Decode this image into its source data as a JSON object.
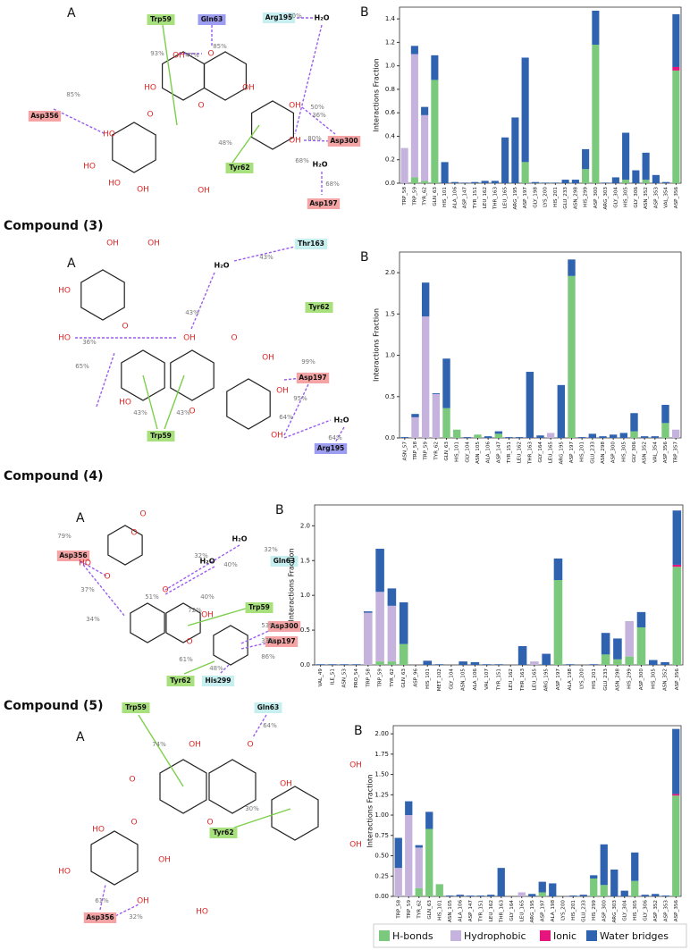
{
  "chart_data": [
    {
      "type": "bar",
      "stacked": true,
      "panel": "B",
      "y_label": "Interactions Fraction",
      "categories": [
        "TRP_58",
        "TRP_59",
        "TYR_62",
        "GLN_63",
        "HIS_101",
        "ALA_106",
        "ASP_147",
        "TYR_151",
        "LEU_162",
        "THR_163",
        "LEU_165",
        "ARG_195",
        "ASP_197",
        "GLY_198",
        "LYS_200",
        "HIS_201",
        "GLU_233",
        "ASN_298",
        "HIS_299",
        "ASP_300",
        "ARG_303",
        "GLY_304",
        "HIS_305",
        "GLY_306",
        "ASN_352",
        "ASP_353",
        "VAL_354",
        "ASP_356"
      ],
      "series": [
        {
          "name": "H-bonds",
          "color": "#7ac97c",
          "values": [
            0,
            0.05,
            0.02,
            0.88,
            0,
            0,
            0,
            0,
            0,
            0,
            0,
            0,
            0.18,
            0,
            0,
            0,
            0,
            0,
            0.12,
            1.18,
            0,
            0,
            0.03,
            0,
            0.03,
            0,
            0,
            0.96
          ]
        },
        {
          "name": "Hydrophobic",
          "color": "#c5b3dd",
          "values": [
            0.3,
            1.05,
            0.56,
            0,
            0,
            0,
            0,
            0,
            0,
            0,
            0,
            0,
            0,
            0,
            0,
            0,
            0,
            0,
            0,
            0,
            0,
            0,
            0,
            0,
            0,
            0,
            0,
            0
          ]
        },
        {
          "name": "Ionic",
          "color": "#e5157d",
          "values": [
            0,
            0,
            0,
            0,
            0,
            0,
            0,
            0,
            0,
            0,
            0,
            0,
            0,
            0,
            0,
            0,
            0,
            0,
            0,
            0,
            0,
            0,
            0,
            0,
            0,
            0,
            0,
            0.03
          ]
        },
        {
          "name": "Water bridges",
          "color": "#2f63b0",
          "values": [
            0,
            0.07,
            0.07,
            0.21,
            0.18,
            0.01,
            0.005,
            0.01,
            0.02,
            0.02,
            0.39,
            0.56,
            0.89,
            0.01,
            0.005,
            0.005,
            0.03,
            0.03,
            0.17,
            0.29,
            0.005,
            0.05,
            0.4,
            0.11,
            0.23,
            0.07,
            0.01,
            0.45
          ]
        }
      ],
      "ylim": [
        0,
        1.5
      ],
      "yticks": [
        {
          "value": 0,
          "label": "0.0"
        },
        0.2,
        0.4,
        0.6,
        0.8,
        {
          "value": 1,
          "label": "1.0"
        },
        1.2,
        1.4
      ]
    },
    {
      "type": "bar",
      "stacked": true,
      "panel": "B",
      "y_label": "Interactions Fraction",
      "categories": [
        "ASN_57",
        "TRP_58",
        "TRP_59",
        "TYR_62",
        "GLN_63",
        "HIS_101",
        "GLY_104",
        "ASN_105",
        "ALA_106",
        "ASP_147",
        "TYR_151",
        "LEU_162",
        "THR_163",
        "GLY_164",
        "LEU_165",
        "ARG_195",
        "ASP_197",
        "HIS_201",
        "GLU_233",
        "ASN_298",
        "ASP_300",
        "HIS_305",
        "GLY_306",
        "ASN_352",
        "VAL_354",
        "ASP_356",
        "TRP_357"
      ],
      "series": [
        {
          "name": "H-bonds",
          "color": "#7ac97c",
          "values": [
            0,
            0,
            0,
            0,
            0.36,
            0.1,
            0,
            0.04,
            0,
            0.05,
            0,
            0,
            0,
            0,
            0,
            0,
            1.96,
            0,
            0,
            0,
            0,
            0,
            0.08,
            0,
            0,
            0.18,
            0
          ]
        },
        {
          "name": "Hydrophobic",
          "color": "#c5b3dd",
          "values": [
            0,
            0.25,
            1.47,
            0.53,
            0,
            0,
            0,
            0,
            0,
            0,
            0,
            0,
            0,
            0,
            0.06,
            0,
            0,
            0,
            0,
            0,
            0,
            0,
            0,
            0,
            0,
            0,
            0.1
          ]
        },
        {
          "name": "Ionic",
          "color": "#e5157d",
          "values": [
            0,
            0,
            0,
            0,
            0,
            0,
            0,
            0,
            0,
            0,
            0,
            0,
            0,
            0,
            0,
            0,
            0,
            0,
            0,
            0,
            0,
            0,
            0,
            0,
            0,
            0,
            0
          ]
        },
        {
          "name": "Water bridges",
          "color": "#2f63b0",
          "values": [
            0.01,
            0.04,
            0.41,
            0.01,
            0.6,
            0,
            0.01,
            0,
            0.02,
            0.03,
            0.01,
            0.01,
            0.8,
            0.03,
            0,
            0.64,
            0.2,
            0.01,
            0.05,
            0.02,
            0.04,
            0.06,
            0.22,
            0.02,
            0.02,
            0.22,
            0
          ]
        }
      ],
      "ylim": [
        0,
        2.25
      ],
      "yticks": [
        {
          "value": 0,
          "label": "0.0"
        },
        0.5,
        {
          "value": 1,
          "label": "1.0"
        },
        1.5,
        {
          "value": 2,
          "label": "2.0"
        }
      ]
    },
    {
      "type": "bar",
      "stacked": true,
      "panel": "B",
      "y_label": "Interactions Fraction",
      "categories": [
        "VAL_49",
        "ILE_51",
        "ASN_53",
        "PRO_54",
        "TRP_58",
        "TRP_59",
        "TYR_62",
        "GLN_63",
        "ASP_96",
        "HIS_101",
        "MET_102",
        "GLY_104",
        "ASN_105",
        "ALA_106",
        "VAL_107",
        "TYR_151",
        "LEU_162",
        "THR_163",
        "LEU_165",
        "ARG_195",
        "ASP_197",
        "ALA_198",
        "LYS_200",
        "HIS_201",
        "GLU_233",
        "ASN_298",
        "HIS_299",
        "ASP_300",
        "HIS_305",
        "ASN_352",
        "ASP_356"
      ],
      "series": [
        {
          "name": "H-bonds",
          "color": "#7ac97c",
          "values": [
            0,
            0,
            0,
            0,
            0,
            0.05,
            0.05,
            0.3,
            0,
            0,
            0,
            0,
            0,
            0,
            0,
            0,
            0,
            0,
            0,
            0,
            1.22,
            0,
            0,
            0,
            0.15,
            0.08,
            0.12,
            0.54,
            0,
            0,
            1.41
          ]
        },
        {
          "name": "Hydrophobic",
          "color": "#c5b3dd",
          "values": [
            0,
            0,
            0,
            0,
            0.75,
            1.0,
            0.8,
            0,
            0,
            0,
            0,
            0,
            0,
            0,
            0,
            0,
            0,
            0,
            0.05,
            0,
            0,
            0,
            0,
            0,
            0,
            0,
            0.51,
            0,
            0,
            0,
            0
          ]
        },
        {
          "name": "Ionic",
          "color": "#e5157d",
          "values": [
            0,
            0,
            0,
            0,
            0,
            0,
            0,
            0,
            0,
            0,
            0,
            0,
            0,
            0,
            0,
            0,
            0,
            0,
            0,
            0,
            0,
            0,
            0,
            0,
            0,
            0,
            0,
            0,
            0,
            0,
            0.03
          ]
        },
        {
          "name": "Water bridges",
          "color": "#2f63b0",
          "values": [
            0.01,
            0.01,
            0.01,
            0.01,
            0.02,
            0.62,
            0.25,
            0.6,
            0,
            0.06,
            0.01,
            0,
            0.05,
            0.04,
            0.01,
            0.01,
            0,
            0.27,
            0,
            0.16,
            0.31,
            0.01,
            0,
            0.01,
            0.31,
            0.3,
            0,
            0.22,
            0.07,
            0.04,
            0.78
          ]
        }
      ],
      "ylim": [
        0,
        2.3
      ],
      "yticks": [
        {
          "value": 0,
          "label": "0.0"
        },
        0.5,
        {
          "value": 1,
          "label": "1.0"
        },
        1.5,
        {
          "value": 2,
          "label": "2.0"
        }
      ]
    },
    {
      "type": "bar",
      "stacked": true,
      "panel": "B",
      "y_label": "Interactions Fraction",
      "categories": [
        "TRP_58",
        "TRP_59",
        "TYR_62",
        "GLN_63",
        "HIS_101",
        "ASN_105",
        "ALA_106",
        "ASP_147",
        "TYR_151",
        "LEU_162",
        "THR_163",
        "GLY_164",
        "LEU_165",
        "ARG_195",
        "ASP_197",
        "ALA_198",
        "LYS_200",
        "HIS_201",
        "GLU_233",
        "HIS_299",
        "ASP_300",
        "ARG_303",
        "GLY_304",
        "HIS_305",
        "GLY_306",
        "ASP_352",
        "ASP_353",
        "ASP_356"
      ],
      "series": [
        {
          "name": "H-bonds",
          "color": "#7ac97c",
          "values": [
            0,
            0,
            0.1,
            0.83,
            0.15,
            0,
            0,
            0,
            0,
            0,
            0,
            0,
            0,
            0,
            0.05,
            0,
            0,
            0,
            0,
            0.22,
            0.14,
            0,
            0,
            0.19,
            0,
            0,
            0,
            1.24
          ]
        },
        {
          "name": "Hydrophobic",
          "color": "#c5b3dd",
          "values": [
            0.35,
            1.0,
            0.5,
            0,
            0,
            0,
            0,
            0,
            0,
            0,
            0,
            0,
            0.05,
            0,
            0,
            0,
            0,
            0,
            0,
            0,
            0,
            0,
            0,
            0,
            0,
            0,
            0,
            0
          ]
        },
        {
          "name": "Ionic",
          "color": "#e5157d",
          "values": [
            0,
            0,
            0,
            0,
            0,
            0,
            0,
            0,
            0,
            0,
            0,
            0,
            0,
            0,
            0,
            0,
            0,
            0,
            0,
            0,
            0,
            0,
            0,
            0,
            0,
            0,
            0,
            0.02
          ]
        },
        {
          "name": "Water bridges",
          "color": "#2f63b0",
          "values": [
            0.37,
            0.17,
            0.03,
            0.21,
            0,
            0.01,
            0.02,
            0.01,
            0.01,
            0.02,
            0.35,
            0,
            0,
            0.03,
            0.13,
            0.16,
            0,
            0.01,
            0.02,
            0.04,
            0.5,
            0.33,
            0.07,
            0.35,
            0.02,
            0.03,
            0.01,
            0.8
          ]
        }
      ],
      "ylim": [
        0,
        2.1
      ],
      "yticks": [
        {
          "value": 0,
          "label": "0.00"
        },
        0.25,
        {
          "value": 0.5,
          "label": "0.50"
        },
        0.75,
        {
          "value": 1,
          "label": "1.00"
        },
        1.25,
        {
          "value": 1.5,
          "label": "1.50"
        },
        1.75,
        {
          "value": 2,
          "label": "2.00"
        }
      ]
    }
  ],
  "compound_labels": [
    "Compound (3)",
    "Compound (4)",
    "Compound (5)"
  ],
  "diagrams": [
    {
      "panel": "A",
      "residues": [
        "Trp59",
        "Gln63",
        "Arg195",
        "Asp356",
        "Tyr62",
        "Asp300",
        "Asp197"
      ],
      "waters": [
        "H₂O",
        "H₂O"
      ],
      "percentages": [
        "50%",
        "85%",
        "93%",
        "47%",
        "50%",
        "85%",
        "36%",
        "48%",
        "80%",
        "68%",
        "68%"
      ],
      "atoms": [
        "OH",
        "O",
        "OH",
        "HO",
        "O",
        "O",
        "HO",
        "HO",
        "HO",
        "OH",
        "OH",
        "OH",
        "OH"
      ]
    },
    {
      "panel": "A",
      "residues": [
        "Thr163",
        "Tyr62",
        "Asp197",
        "Trp59",
        "Arg195"
      ],
      "waters": [
        "H₂O",
        "H₂O"
      ],
      "percentages": [
        "43%",
        "43%",
        "36%",
        "65%",
        "43%",
        "43%",
        "99%",
        "95%",
        "64%",
        "64%"
      ],
      "atoms": [
        "OH",
        "OH",
        "HO",
        "HO",
        "O",
        "OH",
        "O",
        "OH",
        "HO",
        "OH",
        "OH",
        "O"
      ]
    },
    {
      "panel": "A",
      "residues": [
        "Asp356",
        "Gln63",
        "Trp59",
        "Asp300",
        "Asp197",
        "Tyr62",
        "His299"
      ],
      "waters": [
        "H₂O",
        "H₂O"
      ],
      "percentages": [
        "32%",
        "32%",
        "40%",
        "40%",
        "72%",
        "51%",
        "79%",
        "37%",
        "34%",
        "53%",
        "33%",
        "86%",
        "61%",
        "48%"
      ],
      "atoms": [
        "O",
        "O",
        "HO",
        "O",
        "O",
        "OH",
        "O"
      ]
    },
    {
      "panel": "A",
      "residues": [
        "Trp59",
        "Gln63",
        "Tyr62",
        "Asp356"
      ],
      "percentages": [
        "74%",
        "64%",
        "30%",
        "61%",
        "32%"
      ],
      "atoms": [
        "OH",
        "O",
        "OH",
        "O",
        "OH",
        "OH",
        "O",
        "O",
        "HO",
        "HO",
        "OH",
        "OH",
        "HO"
      ]
    }
  ]
}
